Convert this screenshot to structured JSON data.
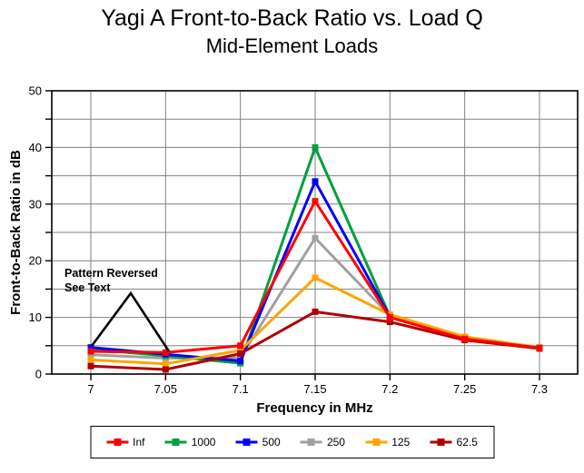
{
  "header": {
    "title": "Yagi A Front-to-Back Ratio vs. Load Q",
    "subtitle": "Mid-Element Loads"
  },
  "annotation": {
    "line1": "Pattern Reversed",
    "line2": "See Text"
  },
  "axes": {
    "xlabel": "Frequency in MHz",
    "ylabel": "Front-to-Back Ratio in dB"
  },
  "colors": {
    "grid": "#808080",
    "axis": "#000000",
    "annotation": "#000000"
  },
  "chart_data": {
    "type": "line",
    "title": "Yagi A Front-to-Back Ratio vs. Load Q",
    "subtitle": "Mid-Element Loads",
    "xlabel": "Frequency in MHz",
    "ylabel": "Front-to-Back Ratio in dB",
    "x": [
      7.0,
      7.05,
      7.1,
      7.15,
      7.2,
      7.25,
      7.3
    ],
    "x_tick_labels": [
      "7",
      "7.05",
      "7.1",
      "7.15",
      "7.2",
      "7.25",
      "7.3"
    ],
    "xlim": [
      6.972,
      7.328
    ],
    "ylim": [
      0,
      50
    ],
    "y_label_step": 10,
    "y_grid_step": 5,
    "grid": true,
    "legend_position": "bottom",
    "marker": "square",
    "series": [
      {
        "name": "Inf",
        "color": "#FF0000",
        "values": [
          4.0,
          3.8,
          5.0,
          30.5,
          10.0,
          6.2,
          4.6
        ]
      },
      {
        "name": "1000",
        "color": "#00A03C",
        "values": [
          4.4,
          3.2,
          1.9,
          40.0,
          10.2,
          6.3,
          4.6
        ]
      },
      {
        "name": "500",
        "color": "#0000FF",
        "values": [
          4.7,
          3.5,
          2.3,
          34.0,
          10.1,
          6.3,
          4.6
        ]
      },
      {
        "name": "250",
        "color": "#A0A0A0",
        "values": [
          3.4,
          2.8,
          2.9,
          24.0,
          10.3,
          6.4,
          4.7
        ]
      },
      {
        "name": "125",
        "color": "#FFA400",
        "values": [
          2.5,
          1.8,
          4.2,
          17.0,
          10.5,
          6.6,
          4.7
        ]
      },
      {
        "name": "62.5",
        "color": "#B00000",
        "values": [
          1.4,
          0.8,
          3.6,
          11.0,
          9.2,
          6.0,
          4.5
        ]
      }
    ]
  }
}
